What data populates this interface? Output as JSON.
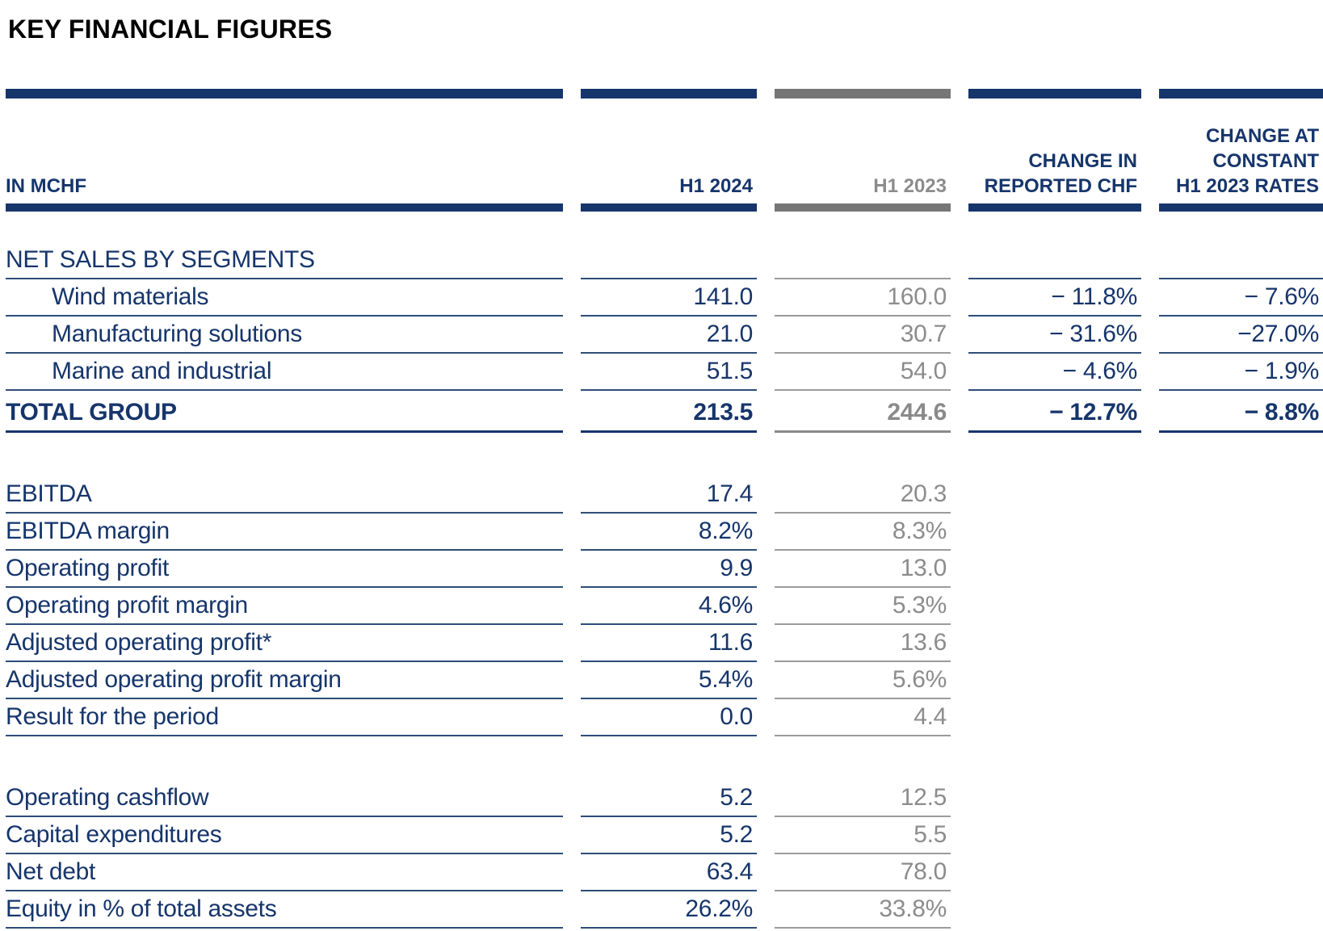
{
  "title": "KEY FINANCIAL FIGURES",
  "colors": {
    "navy": "#16356b",
    "gray_text": "#8c8c8c",
    "gray_bar": "#767676",
    "gray_line": "#9b9b9b",
    "title_black": "#000000"
  },
  "table": {
    "unit_label": "IN MCHF",
    "columns": [
      {
        "label": "H1 2024"
      },
      {
        "label": "H1 2023"
      },
      {
        "label": "CHANGE IN\nREPORTED CHF"
      },
      {
        "label": "CHANGE AT\nCONSTANT\nH1 2023 RATES"
      }
    ],
    "rows": [
      {
        "type": "section-header",
        "label": "NET SALES BY SEGMENTS",
        "values": [
          "",
          "",
          "",
          ""
        ]
      },
      {
        "type": "segment",
        "label": "Wind materials",
        "values": [
          "141.0",
          "160.0",
          "− 11.8%",
          "− 7.6%"
        ]
      },
      {
        "type": "segment",
        "label": "Manufacturing solutions",
        "values": [
          "21.0",
          "30.7",
          "− 31.6%",
          "−27.0%"
        ]
      },
      {
        "type": "segment",
        "label": "Marine and industrial",
        "values": [
          "51.5",
          "54.0",
          "− 4.6%",
          "− 1.9%"
        ]
      },
      {
        "type": "total",
        "label": "TOTAL GROUP",
        "values": [
          "213.5",
          "244.6",
          "− 12.7%",
          "− 8.8%"
        ]
      },
      {
        "type": "spacer",
        "label": "",
        "values": [
          "",
          "",
          "",
          ""
        ]
      },
      {
        "type": "metric",
        "label": "EBITDA",
        "values": [
          "17.4",
          "20.3",
          "",
          ""
        ]
      },
      {
        "type": "metric",
        "label": "EBITDA margin",
        "values": [
          "8.2%",
          "8.3%",
          "",
          ""
        ]
      },
      {
        "type": "metric",
        "label": "Operating profit",
        "values": [
          "9.9",
          "13.0",
          "",
          ""
        ]
      },
      {
        "type": "metric",
        "label": "Operating profit margin",
        "values": [
          "4.6%",
          "5.3%",
          "",
          ""
        ]
      },
      {
        "type": "metric",
        "label": "Adjusted operating profit*",
        "values": [
          "11.6",
          "13.6",
          "",
          ""
        ]
      },
      {
        "type": "metric",
        "label": "Adjusted operating profit margin",
        "values": [
          "5.4%",
          "5.6%",
          "",
          ""
        ]
      },
      {
        "type": "metric",
        "label": "Result for the period",
        "values": [
          "0.0",
          "4.4",
          "",
          ""
        ]
      },
      {
        "type": "spacer",
        "label": "",
        "values": [
          "",
          "",
          "",
          ""
        ]
      },
      {
        "type": "metric",
        "label": "Operating cashflow",
        "values": [
          "5.2",
          "12.5",
          "",
          ""
        ]
      },
      {
        "type": "metric",
        "label": "Capital expenditures",
        "values": [
          "5.2",
          "5.5",
          "",
          ""
        ]
      },
      {
        "type": "metric",
        "label": "Net debt",
        "values": [
          "63.4",
          "78.0",
          "",
          ""
        ]
      },
      {
        "type": "metric",
        "label": "Equity in % of total assets",
        "values": [
          "26.2%",
          "33.8%",
          "",
          ""
        ]
      }
    ]
  }
}
